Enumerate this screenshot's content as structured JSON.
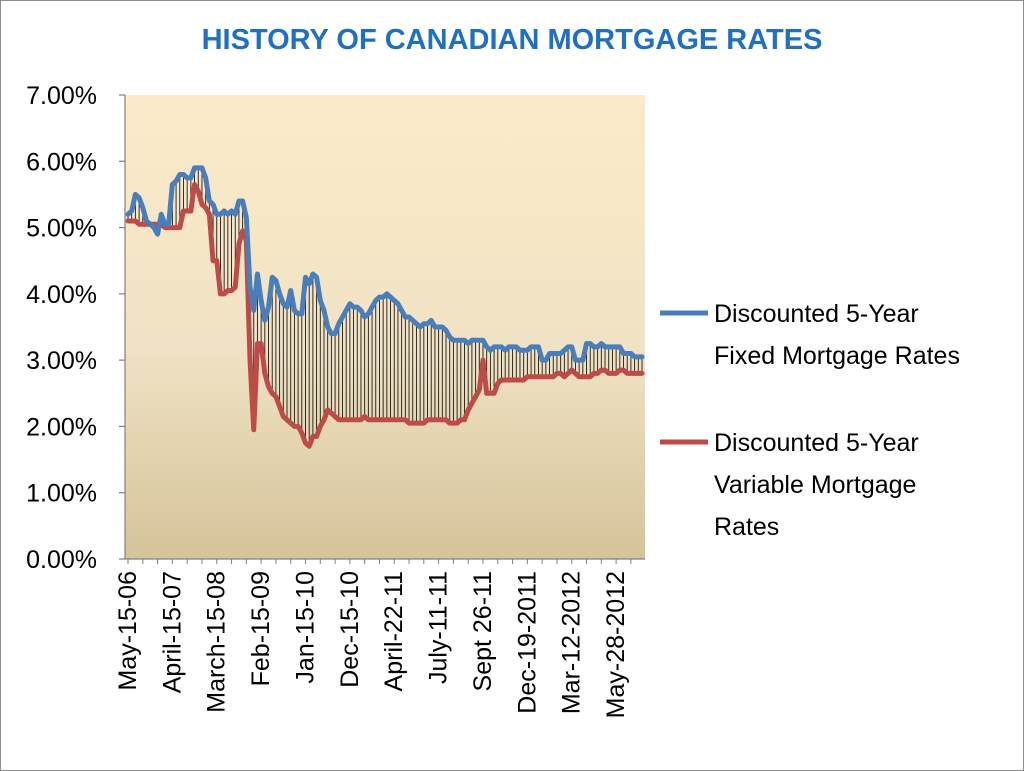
{
  "chart_data": {
    "type": "line",
    "title": "HISTORY OF CANADIAN MORTGAGE RATES",
    "title_color": "#1f6fc5",
    "xlabel": "",
    "ylabel": "",
    "ylim": [
      0,
      0.07
    ],
    "y_ticks": [
      0,
      0.01,
      0.02,
      0.03,
      0.04,
      0.05,
      0.06,
      0.07
    ],
    "y_tick_labels": [
      "0.00%",
      "1.00%",
      "2.00%",
      "3.00%",
      "4.00%",
      "5.00%",
      "6.00%",
      "7.00%"
    ],
    "x_tick_labels": [
      "May-15-06",
      "April-15-07",
      "March-15-08",
      "Feb-15-09",
      "Jan-15-10",
      "Dec-15-10",
      "April-22-11",
      "July-11-11",
      "Sept 26-11",
      "Dec-19-2011",
      "Mar-12-2012",
      "May-28-2012"
    ],
    "x_tick_index": [
      0,
      12,
      24,
      36,
      48,
      60,
      72,
      84,
      96,
      108,
      120,
      132
    ],
    "point_count": 140,
    "grid": false,
    "legend_position": "right",
    "plot_background": "gradient-tan",
    "drop_lines": true,
    "series": [
      {
        "name": "Discounted 5-Year Fixed Mortgage Rates",
        "legend_lines": [
          "Discounted 5-Year",
          "Fixed Mortgage Rates"
        ],
        "color": "#4a7ebb",
        "values": [
          0.052,
          0.0525,
          0.055,
          0.0545,
          0.053,
          0.051,
          0.0505,
          0.05,
          0.049,
          0.052,
          0.0505,
          0.0505,
          0.0565,
          0.057,
          0.058,
          0.058,
          0.0575,
          0.0575,
          0.059,
          0.059,
          0.059,
          0.0575,
          0.054,
          0.0535,
          0.052,
          0.052,
          0.0525,
          0.052,
          0.0525,
          0.052,
          0.054,
          0.054,
          0.0515,
          0.041,
          0.0375,
          0.043,
          0.039,
          0.036,
          0.038,
          0.0425,
          0.042,
          0.04,
          0.0385,
          0.038,
          0.0405,
          0.0375,
          0.037,
          0.037,
          0.0425,
          0.0415,
          0.043,
          0.0425,
          0.039,
          0.0375,
          0.035,
          0.034,
          0.034,
          0.0355,
          0.0365,
          0.0375,
          0.0385,
          0.038,
          0.038,
          0.0375,
          0.0365,
          0.037,
          0.038,
          0.039,
          0.0395,
          0.0395,
          0.04,
          0.0395,
          0.039,
          0.0385,
          0.0375,
          0.0365,
          0.0365,
          0.036,
          0.0355,
          0.035,
          0.0355,
          0.0355,
          0.036,
          0.035,
          0.035,
          0.035,
          0.0345,
          0.0335,
          0.033,
          0.033,
          0.033,
          0.033,
          0.0325,
          0.033,
          0.033,
          0.033,
          0.033,
          0.032,
          0.0315,
          0.032,
          0.032,
          0.032,
          0.0315,
          0.032,
          0.032,
          0.032,
          0.0315,
          0.0315,
          0.0315,
          0.032,
          0.032,
          0.032,
          0.03,
          0.03,
          0.031,
          0.031,
          0.031,
          0.031,
          0.0315,
          0.032,
          0.032,
          0.03,
          0.03,
          0.03,
          0.0325,
          0.0325,
          0.032,
          0.032,
          0.0325,
          0.032,
          0.032,
          0.032,
          0.032,
          0.032,
          0.031,
          0.031,
          0.031,
          0.0305,
          0.0305,
          0.0305
        ]
      },
      {
        "name": "Discounted 5-Year Variable Mortgage Rates",
        "legend_lines": [
          "Discounted 5-Year",
          "Variable Mortgage",
          "Rates"
        ],
        "color": "#be4b48",
        "values": [
          0.051,
          0.051,
          0.051,
          0.0505,
          0.0505,
          0.0505,
          0.0505,
          0.0505,
          0.0505,
          0.0505,
          0.05,
          0.05,
          0.05,
          0.05,
          0.05,
          0.0525,
          0.0525,
          0.0525,
          0.0565,
          0.0555,
          0.0535,
          0.053,
          0.052,
          0.045,
          0.045,
          0.04,
          0.04,
          0.0405,
          0.0405,
          0.041,
          0.0475,
          0.0495,
          0.048,
          0.03,
          0.0195,
          0.0325,
          0.0325,
          0.028,
          0.026,
          0.025,
          0.0245,
          0.023,
          0.0215,
          0.021,
          0.0205,
          0.02,
          0.02,
          0.019,
          0.0175,
          0.017,
          0.0185,
          0.0185,
          0.02,
          0.021,
          0.0225,
          0.022,
          0.0215,
          0.021,
          0.021,
          0.021,
          0.021,
          0.021,
          0.021,
          0.021,
          0.0215,
          0.021,
          0.021,
          0.021,
          0.021,
          0.021,
          0.021,
          0.021,
          0.021,
          0.021,
          0.021,
          0.021,
          0.0205,
          0.0205,
          0.0205,
          0.0205,
          0.0205,
          0.021,
          0.021,
          0.021,
          0.021,
          0.021,
          0.021,
          0.0205,
          0.0205,
          0.0205,
          0.021,
          0.021,
          0.0225,
          0.0235,
          0.0245,
          0.0255,
          0.03,
          0.025,
          0.025,
          0.025,
          0.0265,
          0.027,
          0.027,
          0.027,
          0.027,
          0.027,
          0.027,
          0.027,
          0.0275,
          0.0275,
          0.0275,
          0.0275,
          0.0275,
          0.0275,
          0.0275,
          0.0275,
          0.028,
          0.028,
          0.0275,
          0.028,
          0.0285,
          0.028,
          0.0275,
          0.0275,
          0.0275,
          0.0275,
          0.028,
          0.028,
          0.0285,
          0.0285,
          0.028,
          0.028,
          0.028,
          0.0285,
          0.0285,
          0.028,
          0.028,
          0.028,
          0.028,
          0.028
        ]
      }
    ]
  }
}
